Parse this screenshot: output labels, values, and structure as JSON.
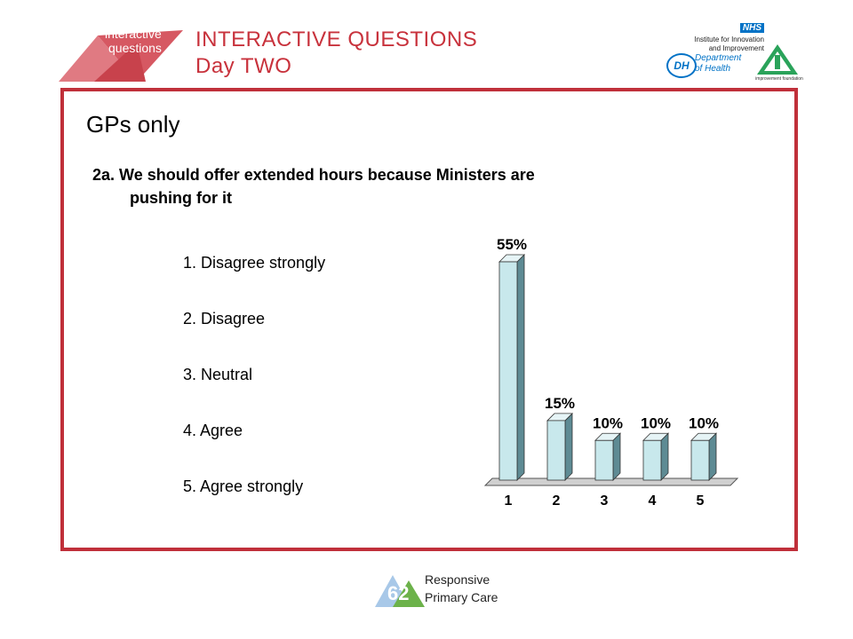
{
  "header": {
    "logo_line1": "interactive",
    "logo_line2": "questions",
    "title_line1": "INTERACTIVE QUESTIONS",
    "title_line2": "Day TWO",
    "nhs_badge": "NHS",
    "nhs_line1": "Institute for Innovation",
    "nhs_line2": "and Improvement",
    "dh_mark": "DH",
    "dh_line1": "Department",
    "dh_line2": "of Health",
    "if_mark": "iF",
    "if_caption": "improvement foundation"
  },
  "slide": {
    "title": "GPs only",
    "question_line1": "2a. We should offer extended hours because Ministers are",
    "question_line2": "pushing for it",
    "options": [
      "1. Disagree strongly",
      "2. Disagree",
      "3. Neutral",
      "4. Agree",
      "5. Agree strongly"
    ]
  },
  "chart_data": {
    "type": "bar",
    "categories": [
      "1",
      "2",
      "3",
      "4",
      "5"
    ],
    "values": [
      55,
      15,
      10,
      10,
      10
    ],
    "data_labels": [
      "55%",
      "15%",
      "10%",
      "10%",
      "10%"
    ],
    "ylim": [
      0,
      55
    ],
    "bar_color": "#c8e8ec",
    "grid": false,
    "legend": "none"
  },
  "footer": {
    "line1": "Responsive",
    "line2": "Primary Care",
    "page_number": "62"
  },
  "colors": {
    "accent": "#c0303a",
    "nhs_blue": "#0072c6"
  }
}
